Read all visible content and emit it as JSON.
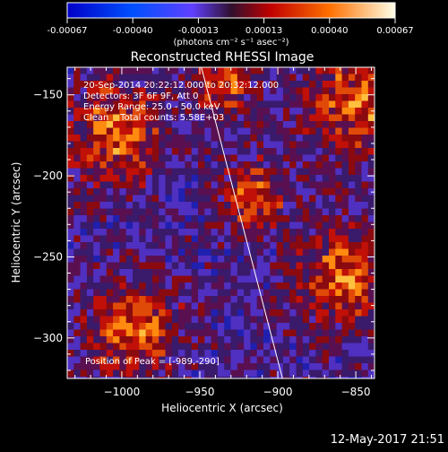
{
  "colorbar": {
    "ticks": [
      "-0.00067",
      "-0.00040",
      "-0.00013",
      "0.00013",
      "0.00040",
      "0.00067"
    ],
    "units": "(photons cm⁻² s⁻¹ asec⁻²)"
  },
  "chart_data": {
    "type": "heatmap",
    "title": "Reconstructed RHESSI Image",
    "xlabel": "Heliocentric X (arcsec)",
    "ylabel": "Heliocentric Y (arcsec)",
    "xlim": [
      -1035,
      -838
    ],
    "ylim": [
      -325,
      -133
    ],
    "x_ticks": [
      -1000,
      -950,
      -900,
      -850
    ],
    "y_ticks": [
      -150,
      -200,
      -250,
      -300
    ],
    "x_tick_labels": [
      "−1000",
      "−950",
      "−900",
      "−850"
    ],
    "y_tick_labels": [
      "−150",
      "−200",
      "−250",
      "−300"
    ],
    "colorbar_range": [
      -0.00067,
      0.00067
    ],
    "peak": {
      "x": -989,
      "y": -290
    },
    "limb_line": [
      [
        -949,
        -133
      ],
      [
        -897,
        -325
      ]
    ],
    "annotations": [
      "20-Sep-2014 20:22:12.000 to 20:32:12.000",
      "Detectors: 3F 6F 9F, Att 0",
      "Energy Range: 25.0 - 50.0 keV",
      "Clean    Total counts: 5.58E+03"
    ],
    "peak_label": "Position of Peak = [-989,-290]"
  },
  "footer": {
    "date": "12-May-2017 21:51"
  }
}
